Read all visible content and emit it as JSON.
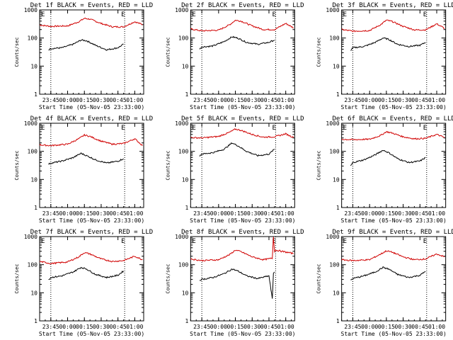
{
  "figure": {
    "background": "#ffffff",
    "event_color": "#000000",
    "lld_color": "#d00000"
  },
  "chart_data": [
    {
      "type": "line",
      "title": "Det 1f BLACK = Events, RED = LLD",
      "xlabel": "Start Time (05-Nov-05 23:33:00)",
      "ylabel": "Counts/sec",
      "x_ticks": [
        "23:45",
        "00:00",
        "00:15",
        "00:30",
        "00:45",
        "01:00"
      ],
      "y_ticks": [
        "1",
        "10",
        "100",
        "1000"
      ],
      "y_scale": "log",
      "ylim": [
        1,
        1000
      ],
      "grid": "dotted vertical markers at 23:45 and 00:51",
      "markers": [
        "E",
        "E"
      ],
      "series": [
        {
          "name": "LLD",
          "color": "#d00000",
          "x": [
            "23:35",
            "23:45",
            "00:00",
            "00:10",
            "00:15",
            "00:20",
            "00:30",
            "00:40",
            "00:50",
            "01:00",
            "01:07"
          ],
          "y": [
            290,
            260,
            270,
            380,
            500,
            470,
            330,
            250,
            250,
            380,
            300
          ]
        },
        {
          "name": "Events",
          "color": "#000000",
          "x": [
            "23:43",
            "23:45",
            "23:55",
            "00:05",
            "00:12",
            "00:17",
            "00:25",
            "00:35",
            "00:45",
            "00:50"
          ],
          "y": [
            38,
            42,
            45,
            60,
            85,
            80,
            55,
            38,
            45,
            60
          ]
        }
      ]
    },
    {
      "type": "line",
      "title": "Det 2f BLACK = Events, RED = LLD",
      "xlabel": "Start Time (05-Nov-05 23:33:00)",
      "ylabel": "Counts/sec",
      "x_ticks": [
        "23:45",
        "00:00",
        "00:15",
        "00:30",
        "00:45",
        "01:00"
      ],
      "y_ticks": [
        "1",
        "10",
        "100",
        "1000"
      ],
      "y_scale": "log",
      "ylim": [
        1,
        1000
      ],
      "grid": "dotted vertical markers at 23:45 and 00:51",
      "markers": [
        "E",
        "E"
      ],
      "series": [
        {
          "name": "LLD",
          "color": "#d00000",
          "x": [
            "23:35",
            "23:45",
            "00:00",
            "00:10",
            "00:15",
            "00:20",
            "00:30",
            "00:40",
            "00:50",
            "01:00",
            "01:07"
          ],
          "y": [
            210,
            180,
            190,
            300,
            430,
            400,
            270,
            200,
            200,
            330,
            230
          ]
        },
        {
          "name": "Events",
          "color": "#000000",
          "x": [
            "23:43",
            "23:45",
            "23:55",
            "00:05",
            "00:12",
            "00:17",
            "00:25",
            "00:35",
            "00:45",
            "00:50"
          ],
          "y": [
            40,
            48,
            52,
            75,
            110,
            100,
            70,
            60,
            70,
            85
          ]
        }
      ]
    },
    {
      "type": "line",
      "title": "Det 3f BLACK = Events, RED = LLD",
      "xlabel": "Start Time (05-Nov-05 23:33:00)",
      "ylabel": "Counts/sec",
      "x_ticks": [
        "23:45",
        "00:00",
        "00:15",
        "00:30",
        "00:45",
        "01:00"
      ],
      "y_ticks": [
        "1",
        "10",
        "100",
        "1000"
      ],
      "y_scale": "log",
      "ylim": [
        1,
        1000
      ],
      "grid": "dotted vertical markers at 23:45 and 00:51",
      "markers": [
        "E",
        "E"
      ],
      "series": [
        {
          "name": "LLD",
          "color": "#d00000",
          "x": [
            "23:35",
            "23:45",
            "00:00",
            "00:10",
            "00:15",
            "00:20",
            "00:30",
            "00:40",
            "00:50",
            "01:00",
            "01:07"
          ],
          "y": [
            200,
            175,
            185,
            300,
            430,
            390,
            260,
            195,
            195,
            320,
            220
          ]
        },
        {
          "name": "Events",
          "color": "#000000",
          "x": [
            "23:43",
            "23:45",
            "23:55",
            "00:05",
            "00:12",
            "00:17",
            "00:25",
            "00:35",
            "00:45",
            "00:50"
          ],
          "y": [
            35,
            45,
            50,
            70,
            100,
            90,
            60,
            50,
            55,
            70
          ]
        }
      ]
    },
    {
      "type": "line",
      "title": "Det 4f BLACK = Events, RED = LLD",
      "xlabel": "Start Time (05-Nov-05 23:33:00)",
      "ylabel": "Counts/sec",
      "x_ticks": [
        "23:45",
        "00:00",
        "00:15",
        "00:30",
        "00:45",
        "01:00"
      ],
      "y_ticks": [
        "1",
        "10",
        "100",
        "1000"
      ],
      "y_scale": "log",
      "ylim": [
        1,
        1000
      ],
      "grid": "dotted vertical markers at 23:45 and 00:51",
      "markers": [
        "E",
        "E"
      ],
      "series": [
        {
          "name": "LLD",
          "color": "#d00000",
          "x": [
            "23:35",
            "23:45",
            "00:00",
            "00:10",
            "00:15",
            "00:20",
            "00:30",
            "00:40",
            "00:50",
            "01:00",
            "01:07"
          ],
          "y": [
            170,
            160,
            180,
            280,
            380,
            340,
            230,
            180,
            190,
            280,
            160
          ]
        },
        {
          "name": "Events",
          "color": "#000000",
          "x": [
            "23:43",
            "23:45",
            "23:55",
            "00:05",
            "00:12",
            "00:17",
            "00:25",
            "00:35",
            "00:45",
            "00:50"
          ],
          "y": [
            35,
            38,
            45,
            60,
            85,
            70,
            50,
            38,
            45,
            55
          ]
        }
      ]
    },
    {
      "type": "line",
      "title": "Det 5f BLACK = Events, RED = LLD",
      "xlabel": "Start Time (05-Nov-05 23:33:00)",
      "ylabel": "Counts/sec",
      "x_ticks": [
        "23:45",
        "00:00",
        "00:15",
        "00:30",
        "00:45",
        "01:00"
      ],
      "y_ticks": [
        "1",
        "10",
        "100",
        "1000"
      ],
      "y_scale": "log",
      "ylim": [
        1,
        1000
      ],
      "grid": "dotted vertical markers at 23:45 and 00:51",
      "markers": [
        "E",
        "E"
      ],
      "series": [
        {
          "name": "LLD",
          "color": "#d00000",
          "x": [
            "23:35",
            "23:45",
            "00:00",
            "00:10",
            "00:15",
            "00:20",
            "00:30",
            "00:40",
            "00:50",
            "01:00",
            "01:07"
          ],
          "y": [
            310,
            300,
            340,
            480,
            620,
            560,
            400,
            320,
            330,
            420,
            310
          ]
        },
        {
          "name": "Events",
          "color": "#000000",
          "x": [
            "23:43",
            "23:45",
            "23:55",
            "00:05",
            "00:12",
            "00:17",
            "00:25",
            "00:35",
            "00:45",
            "00:50"
          ],
          "y": [
            70,
            80,
            90,
            120,
            200,
            160,
            100,
            70,
            80,
            120
          ]
        }
      ]
    },
    {
      "type": "line",
      "title": "Det 6f BLACK = Events, RED = LLD",
      "xlabel": "Start Time (05-Nov-05 23:33:00)",
      "ylabel": "Counts/sec",
      "x_ticks": [
        "23:45",
        "00:00",
        "00:15",
        "00:30",
        "00:45",
        "01:00"
      ],
      "y_ticks": [
        "1",
        "10",
        "100",
        "1000"
      ],
      "y_scale": "log",
      "ylim": [
        1,
        1000
      ],
      "grid": "dotted vertical markers at 23:45 and 00:51",
      "markers": [
        "E",
        "E"
      ],
      "series": [
        {
          "name": "LLD",
          "color": "#d00000",
          "x": [
            "23:35",
            "23:45",
            "00:00",
            "00:10",
            "00:15",
            "00:20",
            "00:30",
            "00:40",
            "00:50",
            "01:00",
            "01:07"
          ],
          "y": [
            270,
            260,
            270,
            370,
            500,
            450,
            330,
            280,
            290,
            400,
            310
          ]
        },
        {
          "name": "Events",
          "color": "#000000",
          "x": [
            "23:43",
            "23:45",
            "23:55",
            "00:05",
            "00:12",
            "00:17",
            "00:25",
            "00:35",
            "00:45",
            "00:50"
          ],
          "y": [
            30,
            40,
            50,
            75,
            110,
            90,
            55,
            40,
            45,
            60
          ]
        }
      ]
    },
    {
      "type": "line",
      "title": "Det 7f BLACK = Events, RED = LLD",
      "xlabel": "Start Time (05-Nov-05 23:33:00)",
      "ylabel": "Counts/sec",
      "x_ticks": [
        "23:45",
        "00:00",
        "00:15",
        "00:30",
        "00:45",
        "01:00"
      ],
      "y_ticks": [
        "1",
        "10",
        "100",
        "1000"
      ],
      "y_scale": "log",
      "ylim": [
        1,
        1000
      ],
      "grid": "dotted vertical markers at 23:45 and 00:51",
      "markers": [
        "E",
        "E"
      ],
      "series": [
        {
          "name": "LLD",
          "color": "#d00000",
          "x": [
            "23:35",
            "23:45",
            "00:00",
            "00:10",
            "00:15",
            "00:20",
            "00:30",
            "00:40",
            "00:50",
            "01:00",
            "01:07"
          ],
          "y": [
            130,
            110,
            125,
            190,
            270,
            240,
            160,
            130,
            140,
            200,
            150
          ]
        },
        {
          "name": "Events",
          "color": "#000000",
          "x": [
            "23:43",
            "23:45",
            "23:55",
            "00:05",
            "00:12",
            "00:17",
            "00:25",
            "00:35",
            "00:45",
            "00:50"
          ],
          "y": [
            30,
            35,
            40,
            55,
            80,
            70,
            45,
            35,
            42,
            60
          ]
        }
      ]
    },
    {
      "type": "line",
      "title": "Det 8f BLACK = Events, RED = LLD",
      "xlabel": "Start Time (05-Nov-05 23:33:00)",
      "ylabel": "Counts/sec",
      "x_ticks": [
        "23:45",
        "00:00",
        "00:15",
        "00:30",
        "00:45",
        "01:00"
      ],
      "y_ticks": [
        "1",
        "10",
        "100",
        "1000"
      ],
      "y_scale": "log",
      "ylim": [
        1,
        1000
      ],
      "grid": "dotted vertical markers at 23:45 and 00:51",
      "markers": [
        "E",
        "E"
      ],
      "series": [
        {
          "name": "LLD",
          "color": "#d00000",
          "x": [
            "23:35",
            "23:45",
            "00:00",
            "00:10",
            "00:15",
            "00:20",
            "00:30",
            "00:40",
            "00:48",
            "00:49",
            "00:50",
            "00:51",
            "01:00",
            "01:07"
          ],
          "y": [
            160,
            140,
            150,
            230,
            330,
            290,
            190,
            150,
            170,
            1000,
            300,
            330,
            280,
            250
          ]
        },
        {
          "name": "Events",
          "color": "#000000",
          "x": [
            "23:43",
            "23:45",
            "23:55",
            "00:05",
            "00:12",
            "00:17",
            "00:25",
            "00:35",
            "00:45",
            "00:48",
            "00:49",
            "00:50"
          ],
          "y": [
            28,
            30,
            35,
            48,
            70,
            60,
            40,
            32,
            40,
            6,
            50,
            55
          ]
        }
      ]
    },
    {
      "type": "line",
      "title": "Det 9f BLACK = Events, RED = LLD",
      "xlabel": "Start Time (05-Nov-05 23:33:00)",
      "ylabel": "Counts/sec",
      "x_ticks": [
        "23:45",
        "00:00",
        "00:15",
        "00:30",
        "00:45",
        "01:00"
      ],
      "y_ticks": [
        "1",
        "10",
        "100",
        "1000"
      ],
      "y_scale": "log",
      "ylim": [
        1,
        1000
      ],
      "grid": "dotted vertical markers at 23:45 and 00:51",
      "markers": [
        "E",
        "E"
      ],
      "series": [
        {
          "name": "LLD",
          "color": "#d00000",
          "x": [
            "23:35",
            "23:45",
            "00:00",
            "00:10",
            "00:15",
            "00:20",
            "00:30",
            "00:40",
            "00:50",
            "01:00",
            "01:07"
          ],
          "y": [
            150,
            140,
            150,
            240,
            310,
            280,
            190,
            150,
            160,
            240,
            190
          ]
        },
        {
          "name": "Events",
          "color": "#000000",
          "x": [
            "23:43",
            "23:45",
            "23:55",
            "00:05",
            "00:12",
            "00:17",
            "00:25",
            "00:35",
            "00:45",
            "00:50"
          ],
          "y": [
            28,
            32,
            40,
            55,
            80,
            70,
            45,
            35,
            42,
            58
          ]
        }
      ]
    }
  ]
}
